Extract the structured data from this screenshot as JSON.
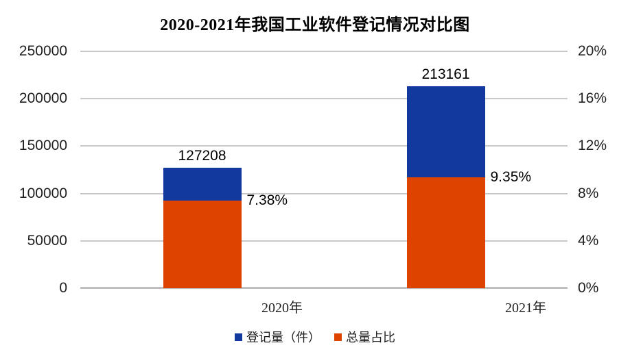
{
  "title": "2020-2021年我国工业软件登记情况对比图",
  "colors": {
    "registrations_blue": "#12399E",
    "share_orange": "#DF4300",
    "gridline": "#C8C8C8",
    "axis_line": "#BFBFBF",
    "text": "#1F1F1F"
  },
  "chart_data": {
    "type": "bar",
    "title": "2020-2021年我国工业软件登记情况对比图",
    "categories": [
      "2020年",
      "2021年"
    ],
    "series": [
      {
        "name": "登记量（件）",
        "axis": "left",
        "color": "#12399E",
        "values": [
          127208,
          213161
        ],
        "data_labels": [
          "127208",
          "213161"
        ]
      },
      {
        "name": "总量占比",
        "axis": "right",
        "color": "#DF4300",
        "values": [
          7.38,
          9.35
        ],
        "data_labels": [
          "7.38%",
          "9.35%"
        ]
      }
    ],
    "left_axis": {
      "min": 0,
      "max": 250000,
      "tick_labels": [
        "0",
        "50000",
        "100000",
        "150000",
        "200000",
        "250000"
      ]
    },
    "right_axis": {
      "min": 0,
      "max": 20,
      "tick_labels": [
        "0%",
        "4%",
        "8%",
        "12%",
        "16%",
        "20%"
      ]
    },
    "grid": "horizontal",
    "bar_style": "overlapped",
    "legend_position": "bottom"
  }
}
